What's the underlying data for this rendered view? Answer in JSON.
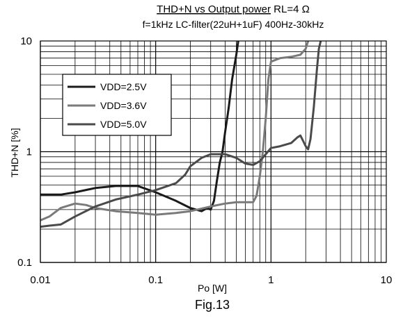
{
  "chart_data": {
    "type": "line",
    "title_underlined": "THD+N vs Output power",
    "title_rest": " RL=4 Ω",
    "subtitle": "f=1kHz LC-filter(22uH+1uF) 400Hz-30kHz",
    "xlabel": "Po [W]",
    "ylabel": "THD+N [%]",
    "caption": "Fig.13",
    "x_scale": "log",
    "y_scale": "log",
    "xlim": [
      0.01,
      10
    ],
    "ylim": [
      0.1,
      10
    ],
    "x_ticks": [
      {
        "value": 0.01,
        "label": "0.01"
      },
      {
        "value": 0.1,
        "label": "0.1"
      },
      {
        "value": 1,
        "label": "1"
      },
      {
        "value": 10,
        "label": "10"
      }
    ],
    "y_ticks": [
      {
        "value": 0.1,
        "label": "0.1"
      },
      {
        "value": 1,
        "label": "1"
      },
      {
        "value": 10,
        "label": "10"
      }
    ],
    "grid": true,
    "legend": "top-left",
    "series": [
      {
        "name": "VDD=2.5V",
        "color": "#1a1a1a",
        "points": [
          [
            0.01,
            0.41
          ],
          [
            0.015,
            0.41
          ],
          [
            0.02,
            0.43
          ],
          [
            0.03,
            0.47
          ],
          [
            0.045,
            0.49
          ],
          [
            0.07,
            0.49
          ],
          [
            0.1,
            0.43
          ],
          [
            0.15,
            0.36
          ],
          [
            0.2,
            0.31
          ],
          [
            0.25,
            0.29
          ],
          [
            0.28,
            0.31
          ],
          [
            0.3,
            0.3
          ],
          [
            0.32,
            0.36
          ],
          [
            0.34,
            0.55
          ],
          [
            0.36,
            0.8
          ],
          [
            0.38,
            1.0
          ],
          [
            0.4,
            1.5
          ],
          [
            0.43,
            2.5
          ],
          [
            0.46,
            4.5
          ],
          [
            0.5,
            7.5
          ],
          [
            0.52,
            10
          ]
        ]
      },
      {
        "name": "VDD=3.6V",
        "color": "#7a7a7a",
        "points": [
          [
            0.01,
            0.24
          ],
          [
            0.012,
            0.26
          ],
          [
            0.015,
            0.31
          ],
          [
            0.02,
            0.34
          ],
          [
            0.025,
            0.33
          ],
          [
            0.03,
            0.31
          ],
          [
            0.045,
            0.29
          ],
          [
            0.07,
            0.28
          ],
          [
            0.1,
            0.27
          ],
          [
            0.15,
            0.28
          ],
          [
            0.2,
            0.29
          ],
          [
            0.3,
            0.32
          ],
          [
            0.4,
            0.34
          ],
          [
            0.5,
            0.35
          ],
          [
            0.6,
            0.35
          ],
          [
            0.7,
            0.35
          ],
          [
            0.75,
            0.4
          ],
          [
            0.8,
            0.6
          ],
          [
            0.85,
            1.0
          ],
          [
            0.9,
            2.0
          ],
          [
            0.95,
            4.5
          ],
          [
            1.0,
            6.5
          ],
          [
            1.2,
            7.0
          ],
          [
            1.5,
            7.2
          ],
          [
            1.8,
            7.5
          ],
          [
            2.0,
            8.5
          ],
          [
            2.1,
            10
          ]
        ]
      },
      {
        "name": "VDD=5.0V",
        "color": "#4a4a4a",
        "points": [
          [
            0.01,
            0.21
          ],
          [
            0.012,
            0.215
          ],
          [
            0.015,
            0.22
          ],
          [
            0.02,
            0.26
          ],
          [
            0.03,
            0.32
          ],
          [
            0.045,
            0.37
          ],
          [
            0.07,
            0.41
          ],
          [
            0.1,
            0.45
          ],
          [
            0.15,
            0.52
          ],
          [
            0.18,
            0.62
          ],
          [
            0.2,
            0.74
          ],
          [
            0.25,
            0.88
          ],
          [
            0.3,
            0.95
          ],
          [
            0.4,
            0.95
          ],
          [
            0.5,
            0.88
          ],
          [
            0.6,
            0.78
          ],
          [
            0.7,
            0.76
          ],
          [
            0.8,
            0.82
          ],
          [
            0.9,
            0.95
          ],
          [
            1.0,
            1.08
          ],
          [
            1.2,
            1.12
          ],
          [
            1.5,
            1.2
          ],
          [
            1.7,
            1.35
          ],
          [
            1.8,
            1.4
          ],
          [
            1.9,
            1.25
          ],
          [
            2.0,
            1.12
          ],
          [
            2.1,
            1.05
          ],
          [
            2.2,
            1.3
          ],
          [
            2.35,
            2.5
          ],
          [
            2.5,
            5.5
          ],
          [
            2.6,
            8.5
          ],
          [
            2.7,
            10
          ]
        ]
      }
    ]
  }
}
